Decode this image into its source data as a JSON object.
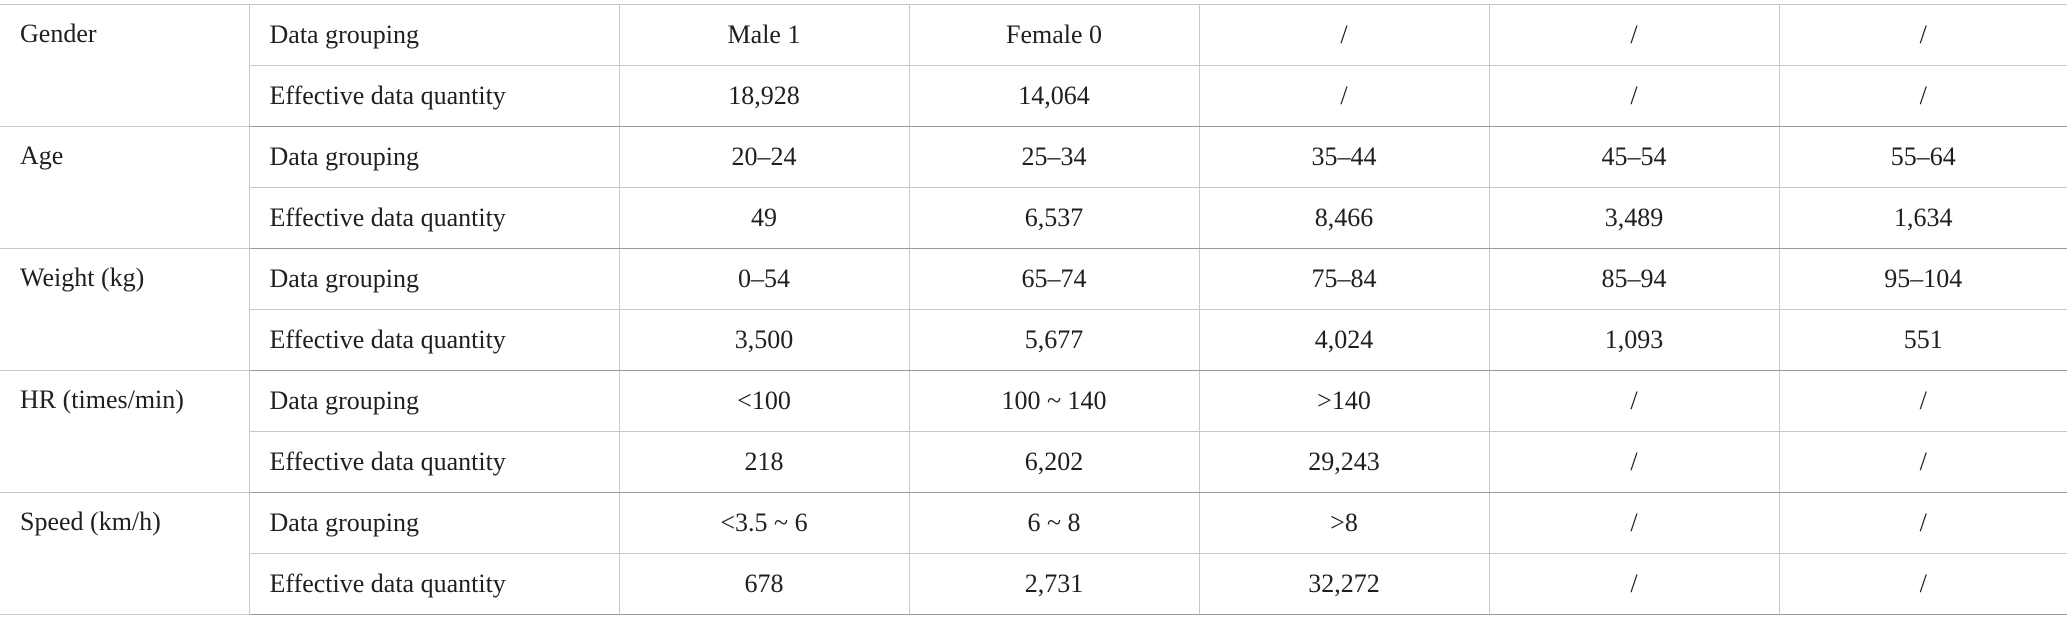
{
  "groups": [
    {
      "category": "Gender",
      "grouping_label": "Data grouping",
      "grouping": [
        "Male 1",
        "Female 0",
        "/",
        "/",
        "/"
      ],
      "quantity_label": "Effective data quantity",
      "quantity": [
        "18,928",
        "14,064",
        "/",
        "/",
        "/"
      ]
    },
    {
      "category": "Age",
      "grouping_label": "Data grouping",
      "grouping": [
        "20–24",
        "25–34",
        "35–44",
        "45–54",
        "55–64"
      ],
      "quantity_label": "Effective data quantity",
      "quantity": [
        "49",
        "6,537",
        "8,466",
        "3,489",
        "1,634"
      ]
    },
    {
      "category": "Weight (kg)",
      "grouping_label": "Data grouping",
      "grouping": [
        "0–54",
        "65–74",
        "75–84",
        "85–94",
        "95–104"
      ],
      "quantity_label": "Effective data quantity",
      "quantity": [
        "3,500",
        "5,677",
        "4,024",
        "1,093",
        "551"
      ]
    },
    {
      "category": "HR (times/min)",
      "grouping_label": "Data grouping",
      "grouping": [
        "<100",
        "100 ~ 140",
        ">140",
        "/",
        "/"
      ],
      "quantity_label": "Effective data quantity",
      "quantity": [
        "218",
        "6,202",
        "29,243",
        "/",
        "/"
      ]
    },
    {
      "category": "Speed (km/h)",
      "grouping_label": "Data grouping",
      "grouping": [
        "<3.5 ~ 6",
        "6 ~ 8",
        ">8",
        "/",
        "/"
      ],
      "quantity_label": "Effective data quantity",
      "quantity": [
        "678",
        "2,731",
        "32,272",
        "/",
        "/"
      ]
    }
  ]
}
